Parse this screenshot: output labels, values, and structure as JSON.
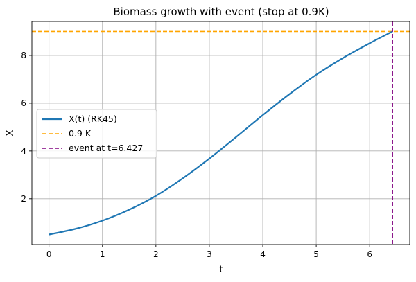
{
  "chart_data": {
    "type": "line",
    "title": "Biomass growth with event (stop at 0.9K)",
    "xlabel": "t",
    "ylabel": "X",
    "xlim": [
      -0.32,
      6.75
    ],
    "ylim": [
      0.08,
      9.42
    ],
    "xticks": [
      0,
      1,
      2,
      3,
      4,
      5,
      6
    ],
    "yticks": [
      2,
      4,
      6,
      8
    ],
    "grid": true,
    "legend_position": "center-left",
    "series": [
      {
        "name": "X(t) (RK45)",
        "color": "#1f77b4",
        "style": "solid",
        "x": [
          0,
          0.5,
          1,
          1.5,
          2,
          2.5,
          3,
          3.5,
          4,
          4.5,
          5,
          5.5,
          6,
          6.427
        ],
        "y": [
          0.5,
          0.74,
          1.08,
          1.54,
          2.12,
          2.85,
          3.68,
          4.58,
          5.5,
          6.38,
          7.19,
          7.89,
          8.51,
          9.0
        ]
      }
    ],
    "reference_lines": [
      {
        "name": "0.9 K",
        "orientation": "horizontal",
        "value": 9.0,
        "color": "#ffa500",
        "style": "dashed"
      },
      {
        "name": "event at t=6.427",
        "orientation": "vertical",
        "value": 6.427,
        "color": "#800080",
        "style": "dashed"
      }
    ]
  }
}
